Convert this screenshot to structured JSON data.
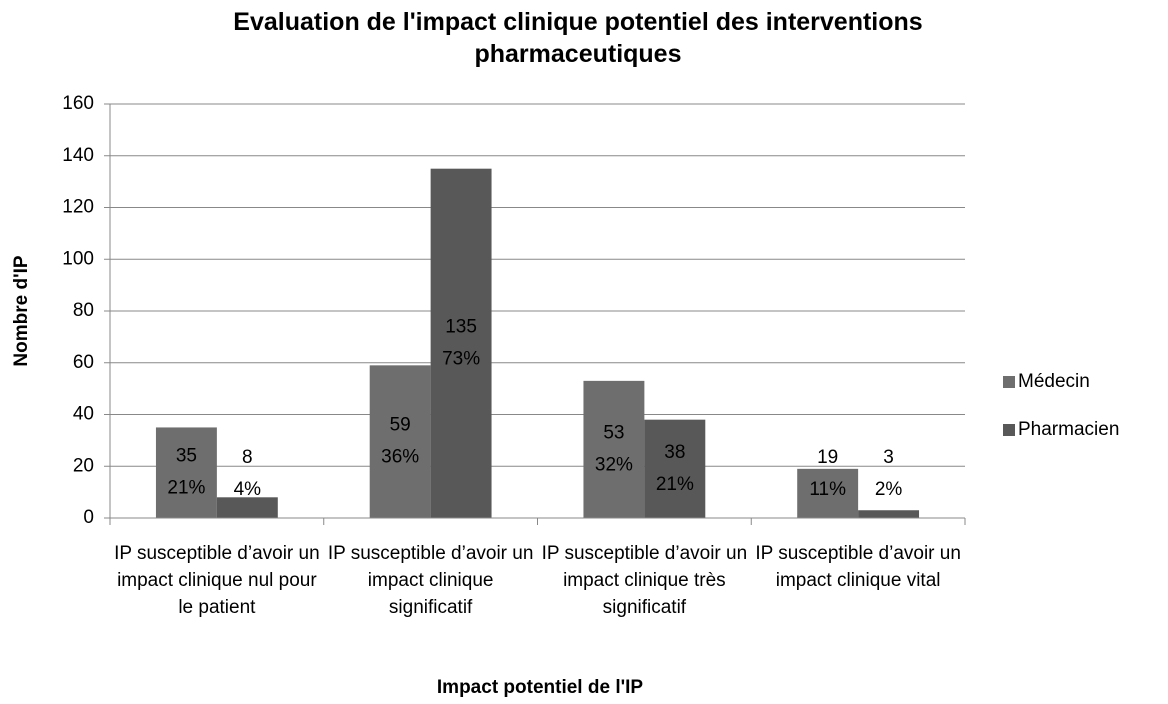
{
  "chart_data": {
    "type": "bar",
    "title": "Evaluation de l'impact clinique potentiel des interventions pharmaceutiques",
    "x_label": "Impact potentiel de l'IP",
    "y_label": "Nombre d'IP",
    "categories": [
      "IP susceptible d’avoir un impact clinique nul pour le patient",
      "IP susceptible d’avoir un impact clinique significatif",
      "IP susceptible d’avoir un impact clinique très significatif",
      "IP susceptible d’avoir un impact clinique vital"
    ],
    "series": [
      {
        "name": "Médecin",
        "color": "#6e6e6e",
        "values": [
          35,
          59,
          53,
          19
        ],
        "percent_labels": [
          "21%",
          "36%",
          "32%",
          "11%"
        ]
      },
      {
        "name": "Pharmacien",
        "color": "#585858",
        "values": [
          8,
          135,
          38,
          3
        ],
        "percent_labels": [
          "4%",
          "73%",
          "21%",
          "2%"
        ]
      }
    ],
    "ylim": [
      0,
      160
    ],
    "yticks": [
      0,
      20,
      40,
      60,
      80,
      100,
      120,
      140,
      160
    ],
    "grid": true,
    "legend": "right"
  }
}
